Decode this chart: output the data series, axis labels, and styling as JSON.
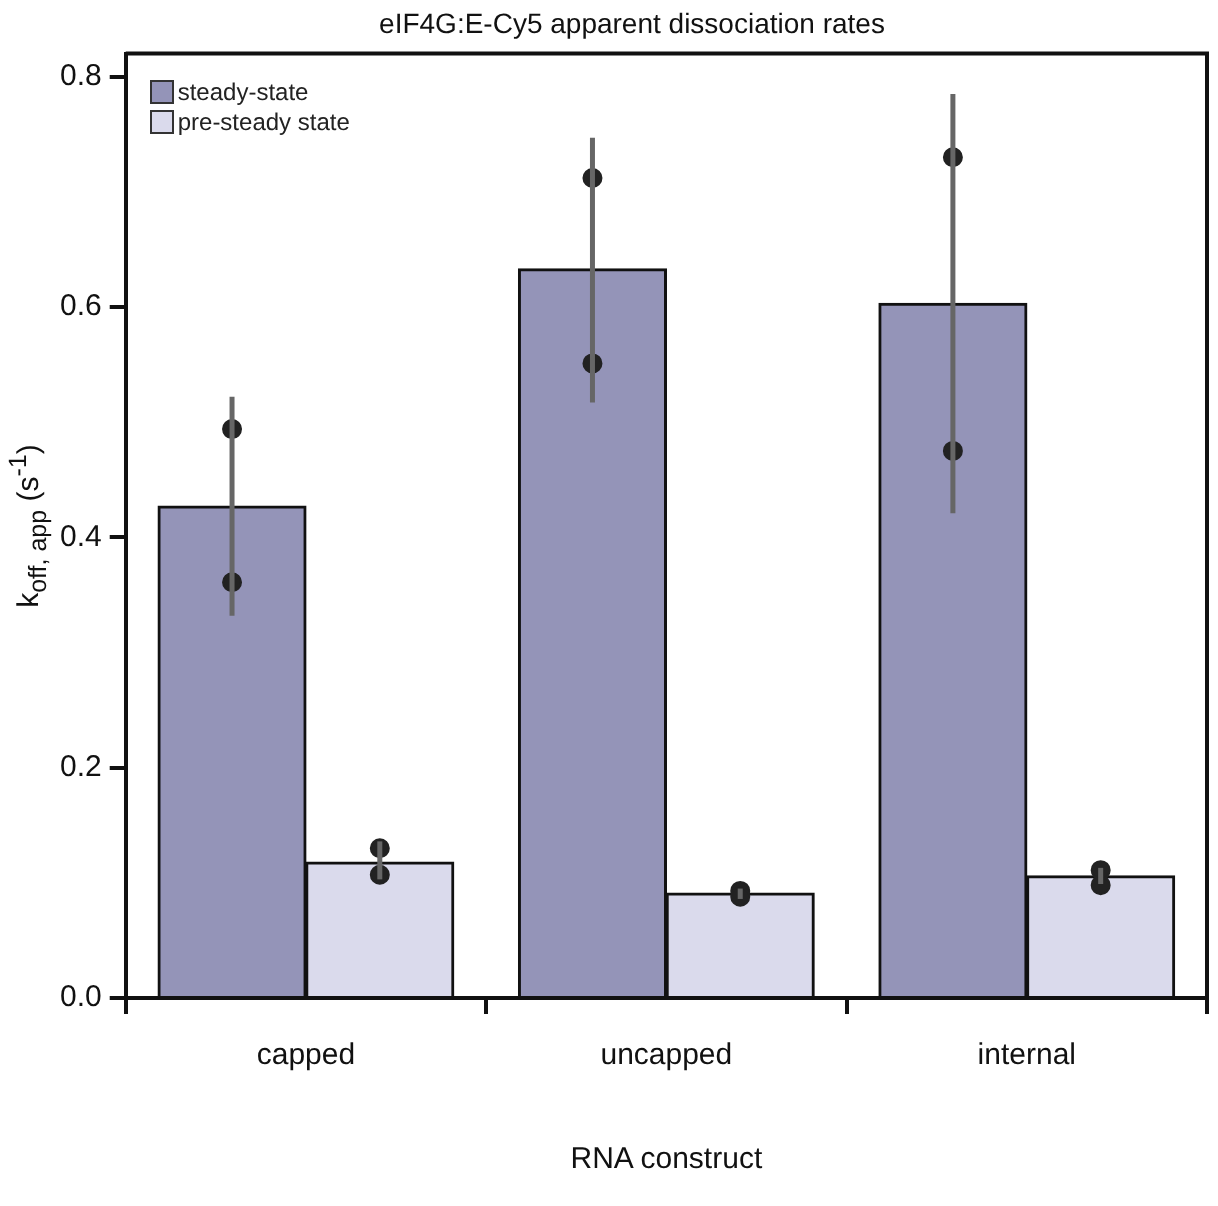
{
  "chart_data": {
    "type": "bar",
    "title": "eIF4G:E-Cy5 apparent dissociation rates",
    "xlabel": "RNA construct",
    "ylabel": "k$_{off, app}$ (s$^{-1}$)",
    "categories": [
      "capped",
      "uncapped",
      "internal"
    ],
    "series": [
      {
        "name": "steady-state",
        "color": "#9494b8",
        "values": [
          0.427,
          0.633,
          0.603
        ],
        "errors": [
          [
            0.332,
            0.522
          ],
          [
            0.517,
            0.747
          ],
          [
            0.421,
            0.785
          ]
        ]
      },
      {
        "name": "pre-steady state",
        "color": "#dadaec",
        "values": [
          0.118,
          0.091,
          0.106
        ],
        "errors": [
          [
            0.103,
            0.136
          ],
          [
            0.086,
            0.095
          ],
          [
            0.099,
            0.113
          ]
        ]
      },
      {
        "type": "scatter",
        "color": "#222222",
        "x": [
          "capped",
          "capped",
          "uncapped",
          "uncapped",
          "internal",
          "internal"
        ],
        "values": [
          0.494,
          0.361,
          0.712,
          0.551,
          0.73,
          0.475
        ]
      },
      {
        "type": "scatter",
        "color": "#222222",
        "x": [
          "capped",
          "capped",
          "uncapped",
          "uncapped",
          "internal",
          "internal"
        ],
        "values": [
          0.13,
          0.107,
          0.093,
          0.088,
          0.098,
          0.111
        ]
      }
    ],
    "ylim": [
      0,
      0.82
    ],
    "yticks": [
      {
        "value": 0,
        "label": "0.0"
      },
      0.2,
      0.4,
      0.6,
      0.8
    ],
    "grid": false,
    "legend": "top left"
  }
}
